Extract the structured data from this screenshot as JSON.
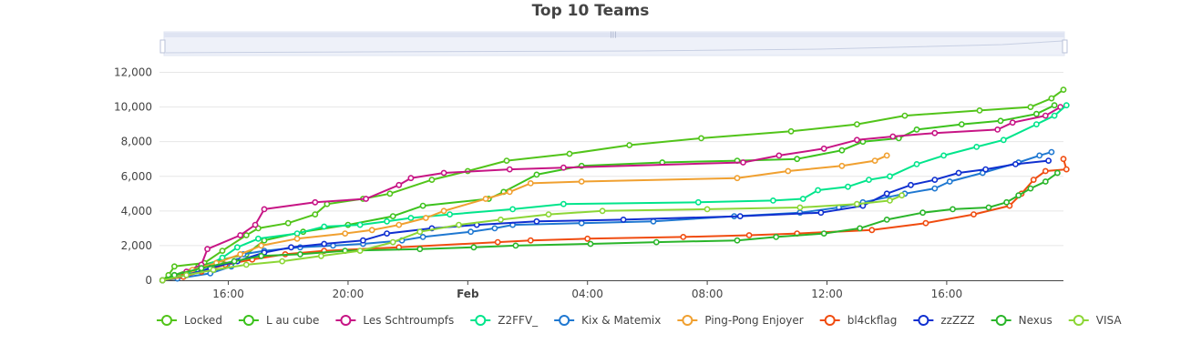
{
  "chart_data": {
    "type": "line",
    "title": "Top 10 Teams",
    "xlabel": "",
    "ylabel": "",
    "ylim": [
      0,
      12500
    ],
    "xlim_hours": [
      13.7,
      43.9
    ],
    "y_ticks": [
      "0",
      "2,000",
      "4,000",
      "6,000",
      "8,000",
      "10,000",
      "12,000"
    ],
    "x_ticks": [
      {
        "label": "16:00",
        "bold": false
      },
      {
        "label": "20:00",
        "bold": false
      },
      {
        "label": "Feb",
        "bold": true
      },
      {
        "label": "04:00",
        "bold": false
      },
      {
        "label": "08:00",
        "bold": false
      },
      {
        "label": "12:00",
        "bold": false
      },
      {
        "label": "16:00",
        "bold": false
      }
    ],
    "range_slider": true,
    "legend_position": "bottom",
    "x_unit_note": "x values are hours from Jan 31 00:00",
    "series": [
      {
        "name": "Locked",
        "color": "#52c41a",
        "points": [
          [
            13.8,
            0
          ],
          [
            14.0,
            300
          ],
          [
            14.2,
            800
          ],
          [
            15.2,
            1000
          ],
          [
            15.8,
            1700
          ],
          [
            16.6,
            2600
          ],
          [
            17.0,
            3000
          ],
          [
            18.0,
            3300
          ],
          [
            18.9,
            3800
          ],
          [
            19.3,
            4400
          ],
          [
            20.5,
            4700
          ],
          [
            21.4,
            5000
          ],
          [
            22.8,
            5800
          ],
          [
            24.0,
            6300
          ],
          [
            25.3,
            6900
          ],
          [
            27.4,
            7300
          ],
          [
            29.4,
            7800
          ],
          [
            31.8,
            8200
          ],
          [
            34.8,
            8600
          ],
          [
            37.0,
            9000
          ],
          [
            38.6,
            9500
          ],
          [
            41.1,
            9800
          ],
          [
            42.8,
            10000
          ],
          [
            43.5,
            10500
          ],
          [
            43.9,
            11000
          ]
        ]
      },
      {
        "name": "L au cube",
        "color": "#3cc21d",
        "points": [
          [
            13.8,
            0
          ],
          [
            14.2,
            300
          ],
          [
            15.0,
            800
          ],
          [
            15.8,
            1200
          ],
          [
            16.6,
            1500
          ],
          [
            17.2,
            2300
          ],
          [
            18.5,
            2800
          ],
          [
            20.0,
            3200
          ],
          [
            21.5,
            3700
          ],
          [
            22.5,
            4300
          ],
          [
            24.7,
            4700
          ],
          [
            25.2,
            5100
          ],
          [
            26.3,
            6100
          ],
          [
            27.8,
            6600
          ],
          [
            30.5,
            6800
          ],
          [
            33.0,
            6900
          ],
          [
            35.0,
            7000
          ],
          [
            36.5,
            7500
          ],
          [
            37.2,
            8000
          ],
          [
            38.4,
            8200
          ],
          [
            39.0,
            8700
          ],
          [
            40.5,
            9000
          ],
          [
            41.8,
            9200
          ],
          [
            43.0,
            9600
          ],
          [
            43.6,
            10100
          ]
        ]
      },
      {
        "name": "Les Schtroumpfs",
        "color": "#c71585",
        "points": [
          [
            13.8,
            0
          ],
          [
            14.6,
            500
          ],
          [
            15.1,
            900
          ],
          [
            15.3,
            1800
          ],
          [
            16.4,
            2600
          ],
          [
            16.9,
            3200
          ],
          [
            17.2,
            4100
          ],
          [
            18.9,
            4500
          ],
          [
            20.6,
            4700
          ],
          [
            21.7,
            5500
          ],
          [
            22.1,
            5900
          ],
          [
            23.2,
            6200
          ],
          [
            25.4,
            6400
          ],
          [
            27.2,
            6500
          ],
          [
            33.2,
            6800
          ],
          [
            34.4,
            7200
          ],
          [
            35.9,
            7600
          ],
          [
            37.0,
            8100
          ],
          [
            38.2,
            8300
          ],
          [
            39.6,
            8500
          ],
          [
            41.7,
            8700
          ],
          [
            42.2,
            9100
          ],
          [
            43.3,
            9500
          ],
          [
            43.8,
            10000
          ]
        ]
      },
      {
        "name": "Z2FFV_",
        "color": "#00e58b",
        "points": [
          [
            13.8,
            0
          ],
          [
            14.5,
            300
          ],
          [
            15.0,
            600
          ],
          [
            15.8,
            1300
          ],
          [
            16.3,
            1900
          ],
          [
            17.0,
            2400
          ],
          [
            18.3,
            2700
          ],
          [
            19.2,
            3100
          ],
          [
            20.4,
            3200
          ],
          [
            21.3,
            3400
          ],
          [
            22.1,
            3600
          ],
          [
            23.4,
            3800
          ],
          [
            25.5,
            4100
          ],
          [
            27.2,
            4400
          ],
          [
            31.7,
            4500
          ],
          [
            34.2,
            4600
          ],
          [
            35.2,
            4700
          ],
          [
            35.7,
            5200
          ],
          [
            36.7,
            5400
          ],
          [
            37.4,
            5800
          ],
          [
            38.1,
            6000
          ],
          [
            39.0,
            6700
          ],
          [
            39.9,
            7200
          ],
          [
            41.0,
            7700
          ],
          [
            41.9,
            8100
          ],
          [
            43.0,
            9000
          ],
          [
            43.6,
            9500
          ],
          [
            44.0,
            10100
          ]
        ]
      },
      {
        "name": "Kix & Matemix",
        "color": "#1f78d1",
        "points": [
          [
            13.8,
            0
          ],
          [
            14.3,
            100
          ],
          [
            15.4,
            400
          ],
          [
            16.1,
            800
          ],
          [
            16.5,
            1500
          ],
          [
            17.2,
            1700
          ],
          [
            18.4,
            1900
          ],
          [
            19.5,
            2000
          ],
          [
            20.5,
            2100
          ],
          [
            21.8,
            2300
          ],
          [
            22.5,
            2500
          ],
          [
            24.1,
            2800
          ],
          [
            24.9,
            3000
          ],
          [
            25.5,
            3200
          ],
          [
            27.8,
            3300
          ],
          [
            30.2,
            3400
          ],
          [
            32.9,
            3700
          ],
          [
            35.1,
            3900
          ],
          [
            36.4,
            4200
          ],
          [
            37.2,
            4500
          ],
          [
            38.6,
            5000
          ],
          [
            39.6,
            5300
          ],
          [
            40.1,
            5700
          ],
          [
            41.2,
            6200
          ],
          [
            42.4,
            6800
          ],
          [
            43.1,
            7200
          ],
          [
            43.5,
            7400
          ]
        ]
      },
      {
        "name": "Ping-Pong Enjoyer",
        "color": "#f0a030",
        "points": [
          [
            13.8,
            0
          ],
          [
            14.8,
            600
          ],
          [
            15.6,
            1000
          ],
          [
            16.4,
            1500
          ],
          [
            17.1,
            2000
          ],
          [
            18.3,
            2400
          ],
          [
            19.9,
            2700
          ],
          [
            20.8,
            2900
          ],
          [
            21.7,
            3200
          ],
          [
            22.6,
            3600
          ],
          [
            23.2,
            4000
          ],
          [
            24.6,
            4700
          ],
          [
            25.4,
            5100
          ],
          [
            26.1,
            5600
          ],
          [
            27.8,
            5700
          ],
          [
            33.0,
            5900
          ],
          [
            34.7,
            6300
          ],
          [
            36.5,
            6600
          ],
          [
            37.6,
            6900
          ],
          [
            38.0,
            7200
          ]
        ]
      },
      {
        "name": "bl4ckflag",
        "color": "#f04c10",
        "points": [
          [
            13.8,
            0
          ],
          [
            14.5,
            200
          ],
          [
            15.1,
            500
          ],
          [
            15.9,
            900
          ],
          [
            16.8,
            1200
          ],
          [
            17.9,
            1500
          ],
          [
            19.2,
            1700
          ],
          [
            21.7,
            1900
          ],
          [
            25.0,
            2200
          ],
          [
            26.1,
            2300
          ],
          [
            28.0,
            2400
          ],
          [
            31.2,
            2500
          ],
          [
            33.4,
            2600
          ],
          [
            35.0,
            2700
          ],
          [
            37.5,
            2900
          ],
          [
            39.3,
            3300
          ],
          [
            40.9,
            3800
          ],
          [
            42.1,
            4300
          ],
          [
            42.5,
            5000
          ],
          [
            42.9,
            5800
          ],
          [
            43.3,
            6300
          ],
          [
            44.0,
            6400
          ],
          [
            43.9,
            7000
          ]
        ]
      },
      {
        "name": "zzZZZ",
        "color": "#1030d0",
        "points": [
          [
            13.8,
            0
          ],
          [
            14.6,
            300
          ],
          [
            15.4,
            700
          ],
          [
            16.3,
            1100
          ],
          [
            17.2,
            1600
          ],
          [
            18.1,
            1900
          ],
          [
            19.2,
            2100
          ],
          [
            20.5,
            2300
          ],
          [
            21.3,
            2700
          ],
          [
            22.8,
            3000
          ],
          [
            24.3,
            3200
          ],
          [
            26.3,
            3400
          ],
          [
            29.2,
            3500
          ],
          [
            33.1,
            3700
          ],
          [
            35.8,
            3900
          ],
          [
            37.2,
            4300
          ],
          [
            38.0,
            5000
          ],
          [
            38.8,
            5500
          ],
          [
            39.6,
            5800
          ],
          [
            40.4,
            6200
          ],
          [
            41.3,
            6400
          ],
          [
            42.3,
            6700
          ],
          [
            43.4,
            6900
          ]
        ]
      },
      {
        "name": "Nexus",
        "color": "#2ab52a",
        "points": [
          [
            13.8,
            0
          ],
          [
            14.2,
            300
          ],
          [
            15.1,
            700
          ],
          [
            16.2,
            1100
          ],
          [
            17.1,
            1400
          ],
          [
            18.4,
            1500
          ],
          [
            19.9,
            1700
          ],
          [
            22.4,
            1800
          ],
          [
            24.2,
            1900
          ],
          [
            25.6,
            2000
          ],
          [
            28.1,
            2100
          ],
          [
            30.3,
            2200
          ],
          [
            33.0,
            2300
          ],
          [
            34.3,
            2500
          ],
          [
            35.9,
            2700
          ],
          [
            37.1,
            3000
          ],
          [
            38.0,
            3500
          ],
          [
            39.2,
            3900
          ],
          [
            40.2,
            4100
          ],
          [
            41.4,
            4200
          ],
          [
            42.0,
            4500
          ],
          [
            42.4,
            4900
          ],
          [
            42.8,
            5300
          ],
          [
            43.3,
            5700
          ],
          [
            43.7,
            6200
          ]
        ]
      },
      {
        "name": "VISA",
        "color": "#8cd636",
        "points": [
          [
            13.8,
            0
          ],
          [
            14.6,
            300
          ],
          [
            15.5,
            600
          ],
          [
            16.6,
            900
          ],
          [
            17.8,
            1100
          ],
          [
            19.1,
            1400
          ],
          [
            20.4,
            1700
          ],
          [
            21.5,
            2200
          ],
          [
            22.4,
            2800
          ],
          [
            23.7,
            3200
          ],
          [
            25.1,
            3500
          ],
          [
            26.7,
            3800
          ],
          [
            28.5,
            4000
          ],
          [
            32.0,
            4100
          ],
          [
            35.1,
            4200
          ],
          [
            37.0,
            4400
          ],
          [
            38.1,
            4600
          ],
          [
            38.5,
            4900
          ]
        ]
      }
    ]
  }
}
